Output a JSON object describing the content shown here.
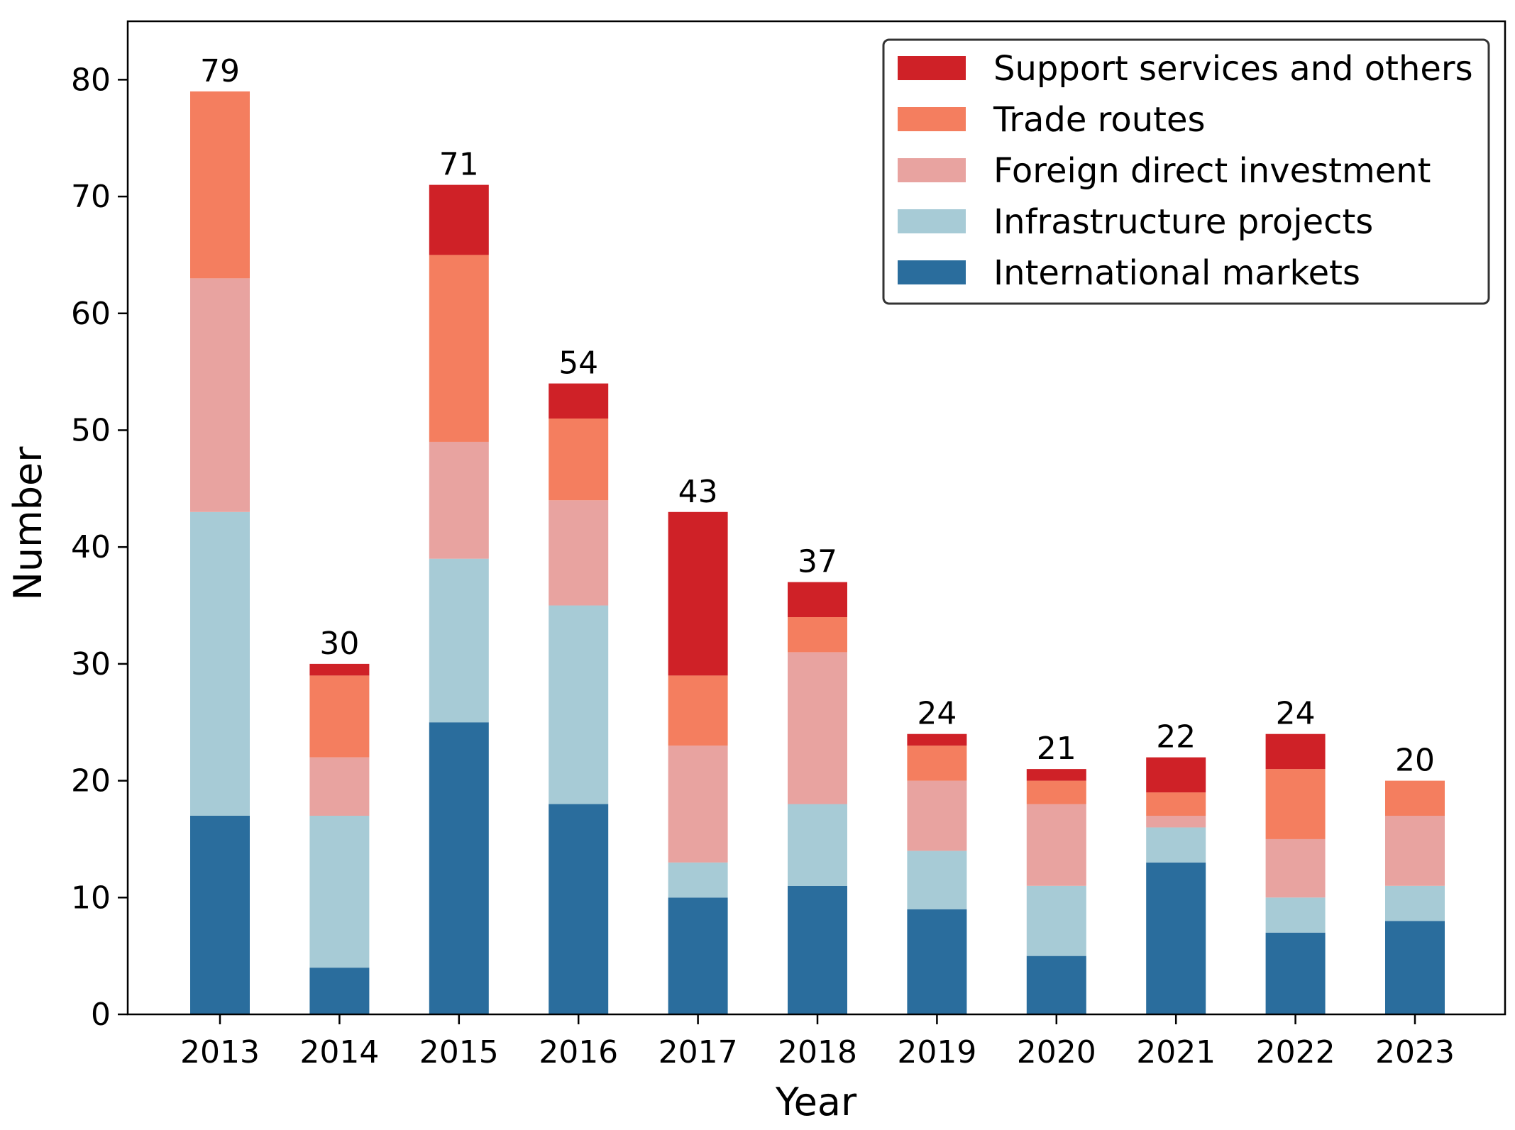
{
  "chart_data": {
    "type": "bar",
    "stacked": true,
    "title": "",
    "xlabel": "Year",
    "ylabel": "Number",
    "ylim": [
      0,
      85
    ],
    "yticks": [
      0,
      10,
      20,
      30,
      40,
      50,
      60,
      70,
      80
    ],
    "grid": false,
    "legend_position": "top-right",
    "categories": [
      "2013",
      "2014",
      "2015",
      "2016",
      "2017",
      "2018",
      "2019",
      "2020",
      "2021",
      "2022",
      "2023"
    ],
    "series": [
      {
        "name": "International markets",
        "color": "#2a6d9d",
        "values": [
          17,
          4,
          25,
          18,
          10,
          11,
          9,
          5,
          13,
          7,
          8
        ]
      },
      {
        "name": "Infrastructure projects",
        "color": "#a7cbd6",
        "values": [
          26,
          13,
          14,
          17,
          3,
          7,
          5,
          6,
          3,
          3,
          3
        ]
      },
      {
        "name": "Foreign direct investment",
        "color": "#e8a3a0",
        "values": [
          20,
          5,
          10,
          9,
          10,
          13,
          6,
          7,
          1,
          5,
          6
        ]
      },
      {
        "name": "Trade routes",
        "color": "#f47e5f",
        "values": [
          16,
          7,
          16,
          7,
          6,
          3,
          3,
          2,
          2,
          6,
          3
        ]
      },
      {
        "name": "Support services and others",
        "color": "#cf2127",
        "values": [
          0,
          1,
          6,
          3,
          14,
          3,
          1,
          1,
          3,
          3,
          0
        ]
      }
    ],
    "totals": [
      79,
      30,
      71,
      54,
      43,
      37,
      24,
      21,
      22,
      24,
      20
    ],
    "legend_order": [
      "Support services and others",
      "Trade routes",
      "Foreign direct investment",
      "Infrastructure projects",
      "International markets"
    ]
  }
}
